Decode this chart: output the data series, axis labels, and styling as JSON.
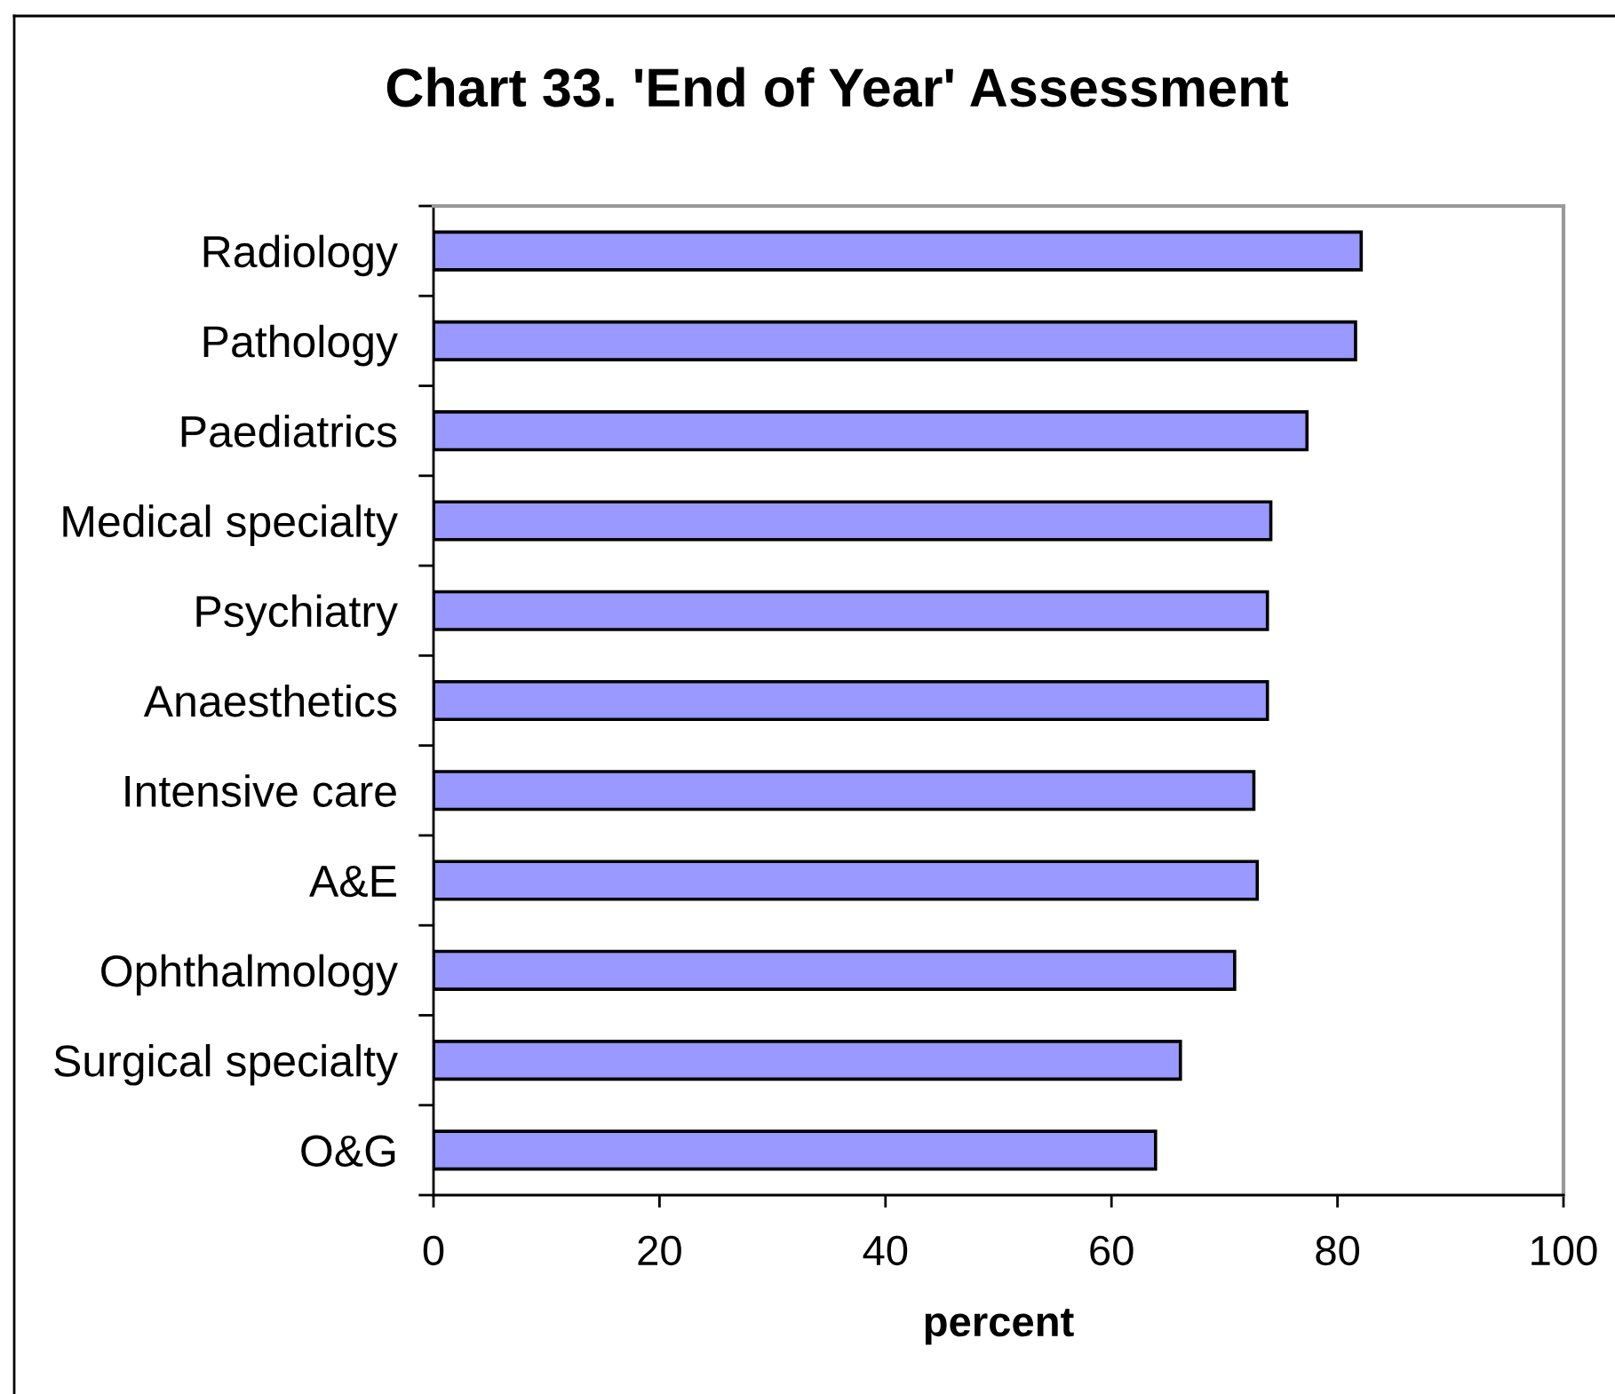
{
  "chart_data": {
    "type": "bar",
    "orientation": "horizontal",
    "title": "Chart 33. 'End of Year' Assessment",
    "xlabel": "percent",
    "categories": [
      "Radiology",
      "Pathology",
      "Paediatrics",
      "Medical specialty",
      "Psychiatry",
      "Anaesthetics",
      "Intensive care",
      "A&E",
      "Ophthalmology",
      "Surgical specialty",
      "O&G"
    ],
    "values": [
      82.1,
      81.6,
      77.3,
      74.1,
      73.8,
      73.8,
      72.6,
      72.9,
      70.9,
      66.1,
      63.9
    ],
    "color": "#9999ff",
    "xlim": [
      0,
      100
    ],
    "xticks": [
      0,
      20,
      40,
      60,
      80,
      100
    ],
    "grid": false,
    "legend": false
  }
}
